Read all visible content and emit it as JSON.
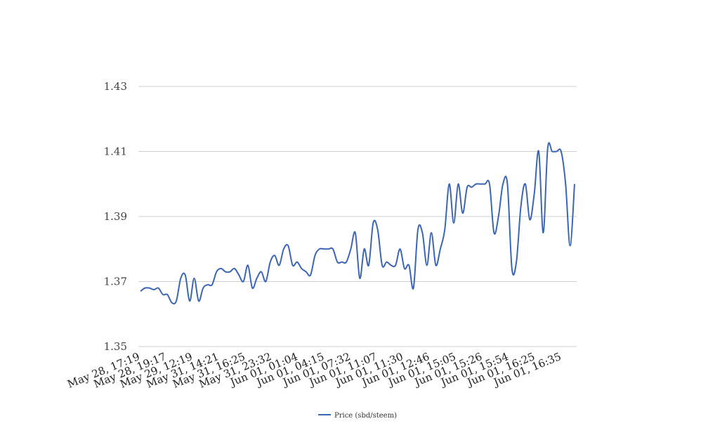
{
  "chart_data": {
    "type": "line",
    "title": "",
    "xlabel": "",
    "ylabel": "",
    "ylim": [
      1.35,
      1.43
    ],
    "y_ticks": [
      "1.35",
      "1.37",
      "1.39",
      "1.41",
      "1.43"
    ],
    "x_tick_labels": [
      "May 28, 17:19",
      "May 28, 19:17",
      "May 29, 12:19",
      "May 31, 14:21",
      "May 31, 16:25",
      "May 31, 23:32",
      "Jun 01, 01:04",
      "Jun 01, 04:15",
      "Jun 01, 07:32",
      "Jun 01, 11:07",
      "Jun 01, 11:30",
      "Jun 01, 12:46",
      "Jun 01, 15:05",
      "Jun 01, 15:26",
      "Jun 01, 15:54",
      "Jun 01, 16:25",
      "Jun 01, 16:35"
    ],
    "grid": true,
    "legend_position": "bottom",
    "series": [
      {
        "name": "Price (sbd/steem)",
        "color": "#3a66b5",
        "values": [
          1.367,
          1.368,
          1.368,
          1.3675,
          1.368,
          1.366,
          1.366,
          1.3635,
          1.364,
          1.371,
          1.372,
          1.364,
          1.371,
          1.364,
          1.368,
          1.369,
          1.369,
          1.373,
          1.374,
          1.373,
          1.373,
          1.374,
          1.372,
          1.37,
          1.375,
          1.368,
          1.371,
          1.373,
          1.37,
          1.376,
          1.378,
          1.375,
          1.38,
          1.381,
          1.375,
          1.376,
          1.374,
          1.373,
          1.372,
          1.378,
          1.38,
          1.38,
          1.38,
          1.38,
          1.376,
          1.376,
          1.376,
          1.38,
          1.385,
          1.371,
          1.38,
          1.375,
          1.388,
          1.386,
          1.375,
          1.376,
          1.375,
          1.375,
          1.38,
          1.374,
          1.375,
          1.368,
          1.386,
          1.385,
          1.375,
          1.385,
          1.375,
          1.38,
          1.386,
          1.4,
          1.388,
          1.4,
          1.391,
          1.399,
          1.399,
          1.4,
          1.4,
          1.4,
          1.4,
          1.385,
          1.39,
          1.4,
          1.4,
          1.374,
          1.376,
          1.393,
          1.4,
          1.389,
          1.397,
          1.41,
          1.385,
          1.411,
          1.41,
          1.41,
          1.41,
          1.4,
          1.381,
          1.4
        ]
      }
    ]
  }
}
